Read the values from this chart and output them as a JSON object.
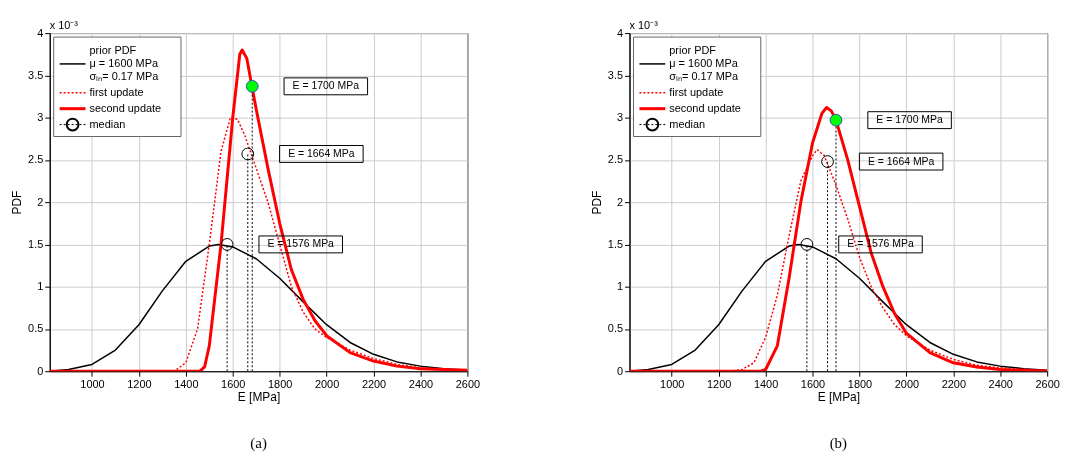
{
  "chart_data": [
    {
      "type": "line",
      "xlabel": "E [MPa]",
      "ylabel": "PDF",
      "xlim": [
        820,
        2600
      ],
      "xticks": [
        1000,
        1200,
        1400,
        1600,
        1800,
        2000,
        2200,
        2400,
        2600
      ],
      "ylim": [
        0,
        4
      ],
      "yticks": [
        0,
        0.5,
        1,
        1.5,
        2,
        2.5,
        3,
        3.5,
        4
      ],
      "grid": true,
      "legend": "top left",
      "annotations": [
        "x 10⁻³",
        "E = 1700 MPa",
        "E = 1664 MPa",
        "E = 1576 MPa",
        "(a)"
      ],
      "series": [
        {
          "name": "prior PDF\nμ = 1600 MPa\nσₗₙ= 0.17 MPa",
          "color": "#000000",
          "line_style": "solid",
          "x": [
            820,
            900,
            1000,
            1100,
            1200,
            1300,
            1400,
            1500,
            1540,
            1600,
            1700,
            1800,
            1900,
            2000,
            2100,
            2200,
            2300,
            2400,
            2500,
            2600
          ],
          "values": [
            0.0,
            0.02,
            0.08,
            0.25,
            0.55,
            0.95,
            1.3,
            1.48,
            1.5,
            1.47,
            1.33,
            1.1,
            0.82,
            0.55,
            0.34,
            0.2,
            0.11,
            0.06,
            0.03,
            0.01
          ]
        },
        {
          "name": "first update",
          "color": "#ff0000",
          "line_style": "dotted",
          "x": [
            820,
            1350,
            1400,
            1450,
            1500,
            1550,
            1590,
            1620,
            1650,
            1700,
            1750,
            1800,
            1850,
            1900,
            1950,
            2000,
            2100,
            2200,
            2300,
            2400,
            2500,
            2600
          ],
          "values": [
            0,
            0,
            0.1,
            0.5,
            1.5,
            2.6,
            3.0,
            2.98,
            2.8,
            2.4,
            2.0,
            1.5,
            1.0,
            0.7,
            0.5,
            0.4,
            0.25,
            0.15,
            0.08,
            0.04,
            0.02,
            0.01
          ]
        },
        {
          "name": "second update",
          "color": "#ff0000",
          "line_style": "solid",
          "x": [
            820,
            1460,
            1480,
            1500,
            1550,
            1600,
            1630,
            1640,
            1660,
            1683,
            1700,
            1750,
            1800,
            1850,
            1900,
            1950,
            2000,
            2100,
            2200,
            2300,
            2400,
            2500,
            2600
          ],
          "values": [
            0,
            0,
            0.05,
            0.3,
            1.5,
            3.0,
            3.75,
            3.8,
            3.7,
            3.35,
            3.1,
            2.4,
            1.75,
            1.2,
            0.85,
            0.6,
            0.42,
            0.22,
            0.12,
            0.06,
            0.03,
            0.02,
            0.01
          ]
        },
        {
          "color": "#000000",
          "line_style": "dotted",
          "x": [
            1576,
            1576
          ],
          "values": [
            0,
            1.5
          ]
        },
        {
          "color": "#000000",
          "line_style": "dotted",
          "x": [
            1664,
            1664
          ],
          "values": [
            0,
            2.57
          ]
        },
        {
          "color": "#000000",
          "line_style": "dotted",
          "x": [
            1683,
            1683
          ],
          "values": [
            0,
            3.37
          ]
        },
        {
          "name": "median",
          "type": "scatter",
          "marker": "circle",
          "color": "#000000",
          "x": [
            1576,
            1664
          ],
          "values": [
            1.5,
            2.57
          ]
        },
        {
          "type": "scatter",
          "marker": "circle",
          "color": "#00ff00",
          "x": [
            1683
          ],
          "values": [
            3.37
          ]
        }
      ]
    },
    {
      "type": "line",
      "xlabel": "E [MPa]",
      "ylabel": "PDF",
      "xlim": [
        820,
        2600
      ],
      "xticks": [
        1000,
        1200,
        1400,
        1600,
        1800,
        2000,
        2200,
        2400,
        2600
      ],
      "ylim": [
        0,
        4
      ],
      "yticks": [
        0,
        0.5,
        1,
        1.5,
        2,
        2.5,
        3,
        3.5,
        4
      ],
      "grid": true,
      "legend": "top left",
      "annotations": [
        "x 10⁻³",
        "E = 1700 MPa",
        "E = 1664 MPa",
        "E = 1576 MPa",
        "(b)"
      ],
      "series": [
        {
          "name": "prior PDF\nμ = 1600 MPa\nσₗₙ= 0.17 MPa",
          "color": "#000000",
          "line_style": "solid",
          "x": [
            820,
            900,
            1000,
            1100,
            1200,
            1300,
            1400,
            1500,
            1540,
            1600,
            1700,
            1800,
            1900,
            2000,
            2100,
            2200,
            2300,
            2400,
            2500,
            2600
          ],
          "values": [
            0.0,
            0.02,
            0.08,
            0.25,
            0.55,
            0.95,
            1.3,
            1.48,
            1.5,
            1.47,
            1.33,
            1.1,
            0.82,
            0.55,
            0.34,
            0.2,
            0.11,
            0.06,
            0.03,
            0.01
          ]
        },
        {
          "name": "first update",
          "color": "#ff0000",
          "line_style": "dotted",
          "x": [
            820,
            1250,
            1300,
            1350,
            1400,
            1450,
            1500,
            1550,
            1600,
            1620,
            1650,
            1700,
            1750,
            1800,
            1850,
            1900,
            1950,
            2000,
            2100,
            2200,
            2300,
            2400,
            2500,
            2600
          ],
          "values": [
            0,
            0,
            0.02,
            0.1,
            0.4,
            0.9,
            1.6,
            2.25,
            2.55,
            2.62,
            2.55,
            2.2,
            1.8,
            1.35,
            1.0,
            0.75,
            0.55,
            0.42,
            0.25,
            0.14,
            0.07,
            0.04,
            0.02,
            0.01
          ]
        },
        {
          "name": "second update",
          "color": "#ff0000",
          "line_style": "solid",
          "x": [
            820,
            1380,
            1400,
            1450,
            1500,
            1550,
            1600,
            1640,
            1660,
            1680,
            1700,
            1750,
            1800,
            1850,
            1900,
            1950,
            2000,
            2100,
            2200,
            2300,
            2400,
            2500,
            2600
          ],
          "values": [
            0,
            0,
            0.02,
            0.3,
            1.1,
            2.0,
            2.7,
            3.05,
            3.12,
            3.08,
            2.97,
            2.5,
            1.95,
            1.4,
            1.0,
            0.68,
            0.45,
            0.22,
            0.1,
            0.05,
            0.02,
            0.01,
            0.0
          ]
        },
        {
          "color": "#000000",
          "line_style": "dotted",
          "x": [
            1576,
            1576
          ],
          "values": [
            0,
            1.5
          ]
        },
        {
          "color": "#000000",
          "line_style": "dotted",
          "x": [
            1664,
            1664
          ],
          "values": [
            0,
            2.48
          ]
        },
        {
          "color": "#000000",
          "line_style": "dotted",
          "x": [
            1700,
            1700
          ],
          "values": [
            0,
            2.97
          ]
        },
        {
          "name": "median",
          "type": "scatter",
          "marker": "circle",
          "color": "#000000",
          "x": [
            1576,
            1664
          ],
          "values": [
            1.5,
            2.48
          ]
        },
        {
          "type": "scatter",
          "marker": "circle",
          "color": "#00ff00",
          "x": [
            1700
          ],
          "values": [
            2.97
          ]
        }
      ]
    }
  ]
}
